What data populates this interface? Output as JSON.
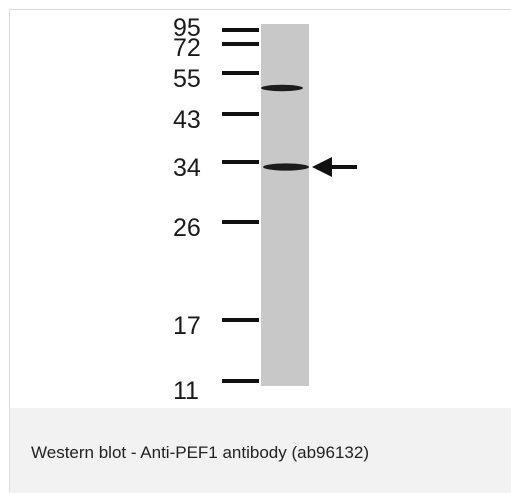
{
  "figure": {
    "lane_color": "#c8c8c8",
    "band_color": "#1c1c1c",
    "marker_color": "#111111",
    "markers": [
      {
        "label": "95",
        "icon": "ladder-tick"
      },
      {
        "label": "72",
        "icon": "ladder-tick"
      },
      {
        "label": "55",
        "icon": "ladder-tick"
      },
      {
        "label": "43",
        "icon": "ladder-tick"
      },
      {
        "label": "34",
        "icon": "ladder-tick"
      },
      {
        "label": "26",
        "icon": "ladder-tick"
      },
      {
        "label": "17",
        "icon": "ladder-tick"
      },
      {
        "label": "11",
        "icon": "ladder-tick"
      }
    ],
    "bands_kda": [
      50,
      34
    ],
    "indicator_icon": "left-arrow-icon"
  },
  "caption": {
    "text": "Western blot - Anti-PEF1 antibody (ab96132)",
    "background": "#f2f2f2"
  }
}
